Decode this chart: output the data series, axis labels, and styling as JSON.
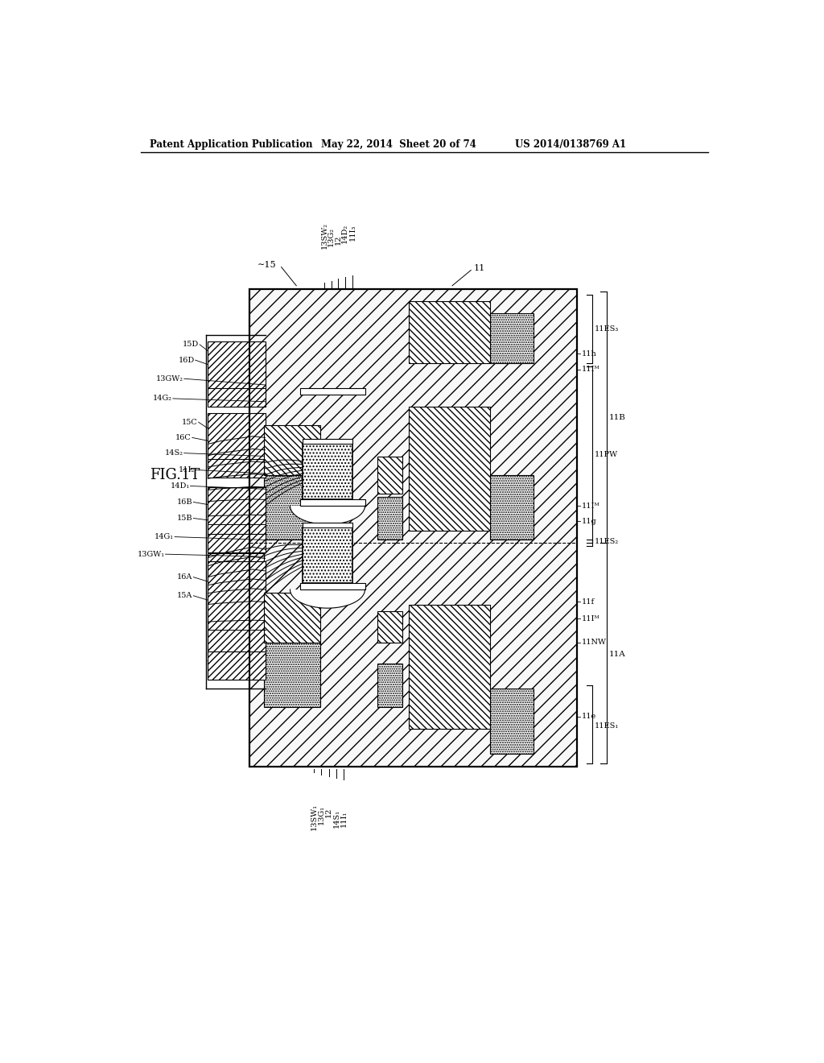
{
  "header_left": "Patent Application Publication",
  "header_mid": "May 22, 2014  Sheet 20 of 74",
  "header_right": "US 2014/0138769 A1",
  "fig_label": "FIG.1T",
  "background": "#ffffff"
}
